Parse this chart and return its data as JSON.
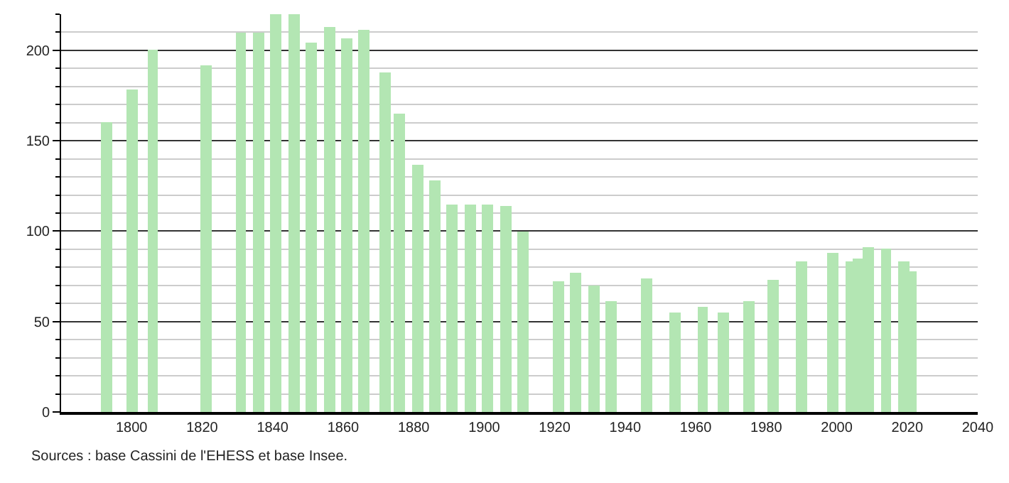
{
  "chart_data": {
    "type": "bar",
    "x": [
      1793,
      1800,
      1806,
      1821,
      1831,
      1836,
      1841,
      1846,
      1851,
      1856,
      1861,
      1866,
      1872,
      1876,
      1881,
      1886,
      1891,
      1896,
      1901,
      1906,
      1911,
      1921,
      1926,
      1931,
      1936,
      1946,
      1954,
      1962,
      1968,
      1975,
      1982,
      1990,
      1999,
      2004,
      2006,
      2009,
      2014,
      2019,
      2021
    ],
    "values": [
      160,
      178,
      200,
      192,
      210,
      210,
      220,
      220,
      204,
      213,
      207,
      211,
      188,
      165,
      137,
      128,
      115,
      115,
      115,
      114,
      100,
      72,
      77,
      70,
      61,
      74,
      55,
      58,
      55,
      61,
      73,
      83,
      88,
      83,
      85,
      91,
      90,
      83,
      78
    ],
    "color": "#b3e6b3",
    "xlim": [
      1780,
      2040
    ],
    "xticks": [
      1800,
      1820,
      1840,
      1860,
      1880,
      1900,
      1920,
      1940,
      1960,
      1980,
      2000,
      2020,
      2040
    ],
    "ylim": [
      0,
      220
    ],
    "yticks": [
      0,
      {
        "value": 10,
        "label": null
      },
      {
        "value": 20,
        "label": null
      },
      {
        "value": 30,
        "label": null
      },
      {
        "value": 40,
        "label": null
      },
      50,
      {
        "value": 60,
        "label": null
      },
      {
        "value": 70,
        "label": null
      },
      {
        "value": 80,
        "label": null
      },
      {
        "value": 90,
        "label": null
      },
      100,
      {
        "value": 110,
        "label": null
      },
      {
        "value": 120,
        "label": null
      },
      {
        "value": 130,
        "label": null
      },
      {
        "value": 140,
        "label": null
      },
      150,
      {
        "value": 160,
        "label": null
      },
      {
        "value": 170,
        "label": null
      },
      {
        "value": 180,
        "label": null
      },
      {
        "value": 190,
        "label": null
      },
      200,
      {
        "value": 210,
        "label": null
      },
      {
        "value": 220,
        "label": null
      }
    ],
    "grid": "y",
    "annotations": [
      "Sources : base Cassini de l'EHESS et base Insee."
    ]
  }
}
